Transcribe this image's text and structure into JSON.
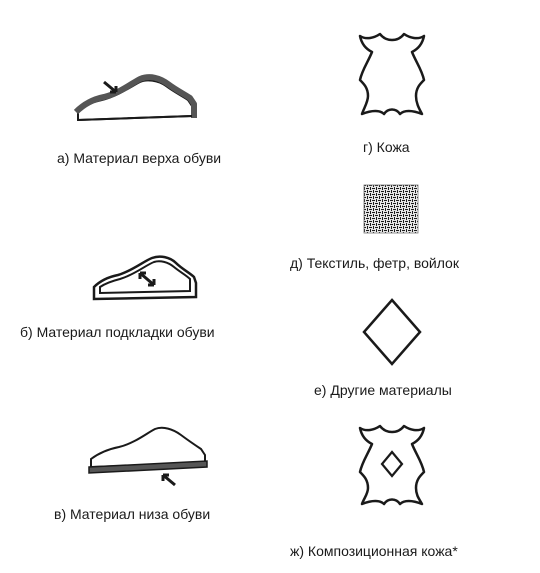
{
  "items": [
    {
      "id": "upper",
      "label": "а) Материал верха обуви",
      "icon": "shoe-upper-icon"
    },
    {
      "id": "lining",
      "label": "б) Материал подкладки обуви",
      "icon": "shoe-lining-icon"
    },
    {
      "id": "sole",
      "label": "в) Материал низа обуви",
      "icon": "shoe-sole-icon"
    },
    {
      "id": "leather",
      "label": "г) Кожа",
      "icon": "leather-hide-icon"
    },
    {
      "id": "textile",
      "label": "д) Текстиль, фетр, войлок",
      "icon": "textile-weave-icon"
    },
    {
      "id": "other",
      "label": "е) Другие материалы",
      "icon": "diamond-icon"
    },
    {
      "id": "composite",
      "label": "ж) Композиционная кожа*",
      "icon": "composite-leather-icon"
    }
  ],
  "colors": {
    "ink": "#1a1a1a",
    "accent_fill": "#555555",
    "background": "#ffffff"
  }
}
